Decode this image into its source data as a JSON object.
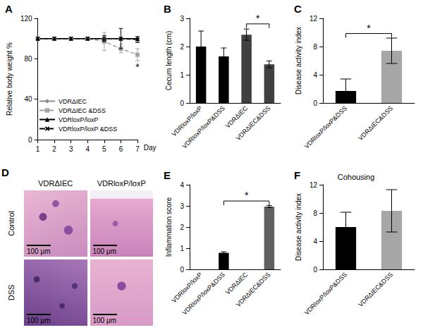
{
  "chart_data": [
    {
      "type": "line",
      "panel": "A",
      "ylabel": "Relative body weight %",
      "xlabel": "Day",
      "x": [
        1,
        2,
        3,
        4,
        5,
        6,
        7
      ],
      "xlim": [
        1,
        7
      ],
      "xticks": [
        1,
        2,
        3,
        4,
        5,
        6,
        7
      ],
      "ylim": [
        0,
        120
      ],
      "yticks": [
        0,
        40,
        80,
        120
      ],
      "grid": false,
      "legend": "lower left",
      "series": [
        {
          "name": "VDRΔIEC",
          "color": "#8c8c8c",
          "marker": "diamond",
          "line_style": "solid",
          "values": [
            100,
            100,
            100,
            100,
            100,
            100,
            100
          ],
          "errors": [
            0,
            0,
            0,
            0,
            0,
            0,
            0
          ]
        },
        {
          "name": "VDRΔIEC &DSS",
          "color": "#a6a6a6",
          "marker": "square",
          "line_style": "dashed",
          "values": [
            100,
            100,
            100,
            100,
            97,
            90,
            84
          ],
          "errors": [
            0,
            0,
            0,
            0,
            9,
            4,
            6
          ]
        },
        {
          "name": "VDRloxP/loxP",
          "color": "#000000",
          "marker": "triangle",
          "line_style": "solid",
          "values": [
            100,
            100,
            100,
            100,
            100,
            100,
            100
          ],
          "errors": [
            0,
            0,
            0,
            0,
            0,
            0,
            0
          ]
        },
        {
          "name": "VDRloxP/loxP &DSS",
          "color": "#000000",
          "marker": "x",
          "line_style": "dashed",
          "values": [
            100,
            100,
            100,
            100,
            100,
            100,
            99
          ],
          "errors": [
            0,
            0,
            0,
            0,
            3,
            10,
            3
          ]
        }
      ],
      "annotations": [
        {
          "text": "*",
          "x": 7,
          "y": 72
        }
      ]
    },
    {
      "type": "bar",
      "panel": "B",
      "ylabel": "Cecum length (cm)",
      "categories": [
        "VDRloxP/loxP",
        "VDRloxP/loxP&DSS",
        "VDRΔIEC",
        "VDRΔIEC&DSS"
      ],
      "values": [
        2.0,
        1.65,
        2.42,
        1.37
      ],
      "errors": [
        0.55,
        0.3,
        0.2,
        0.12
      ],
      "colors": [
        "#000000",
        "#000000",
        "#404040",
        "#404040"
      ],
      "ylim": [
        0,
        3
      ],
      "yticks": [
        0,
        1,
        2,
        3
      ],
      "grid": false,
      "significance": [
        {
          "between": [
            "VDRΔIEC",
            "VDRΔIEC&DSS"
          ],
          "label": "*"
        }
      ]
    },
    {
      "type": "bar",
      "panel": "C",
      "ylabel": "Disease activity index",
      "categories": [
        "VDRloxP/loxP&DSS",
        "VDRΔIEC&DSS"
      ],
      "values": [
        1.7,
        7.4
      ],
      "errors": [
        1.7,
        1.8
      ],
      "colors": [
        "#000000",
        "#a6a6a6"
      ],
      "ylim": [
        0,
        12
      ],
      "yticks": [
        0,
        4,
        8,
        12
      ],
      "grid": false,
      "significance": [
        {
          "between": [
            "VDRloxP/loxP&DSS",
            "VDRΔIEC&DSS"
          ],
          "label": "*"
        }
      ]
    },
    {
      "type": "image_grid",
      "panel": "D",
      "columns": [
        "VDRΔIEC",
        "VDRloxP/loxP"
      ],
      "rows": [
        "Control",
        "DSS"
      ],
      "scale_bar": "100 μm"
    },
    {
      "type": "bar",
      "panel": "E",
      "ylabel": "Inflammation score",
      "categories": [
        "VDRloxP/loxP",
        "VDRloxP/loxP&DSS",
        "VDRΔIEC",
        "VDRΔIEC&DSS"
      ],
      "values": [
        0,
        0.78,
        0,
        2.97
      ],
      "errors": [
        0,
        0.05,
        0,
        0.05
      ],
      "colors": [
        "#000000",
        "#000000",
        "#606060",
        "#606060"
      ],
      "ylim": [
        0,
        4
      ],
      "yticks": [
        0,
        1,
        2,
        3,
        4
      ],
      "grid": false,
      "significance": [
        {
          "between": [
            "VDRloxP/loxP&DSS",
            "VDRΔIEC&DSS"
          ],
          "label": "*"
        }
      ]
    },
    {
      "type": "bar",
      "panel": "F",
      "title": "Cohousing",
      "ylabel": "Disease activity index",
      "categories": [
        "VDRloxP/loxP&DSS",
        "VDRΔIEC&DSS"
      ],
      "values": [
        6.0,
        8.3
      ],
      "errors": [
        2.1,
        3.0
      ],
      "colors": [
        "#000000",
        "#a6a6a6"
      ],
      "ylim": [
        0,
        12
      ],
      "yticks": [
        0,
        4,
        8,
        12
      ],
      "grid": false
    }
  ]
}
